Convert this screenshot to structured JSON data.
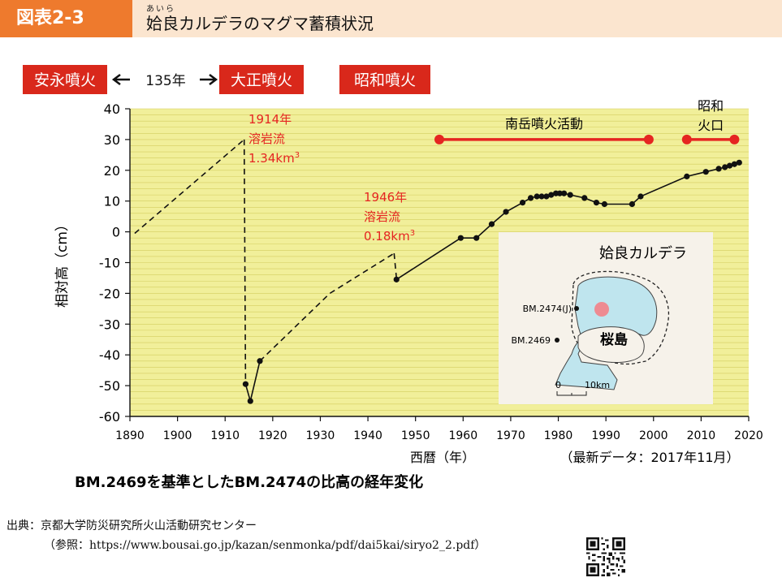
{
  "header": {
    "figure_number": "図表2-3",
    "title_ruby": "あいら",
    "title": "姶良カルデラのマグマ蓄積状況"
  },
  "eruptions": {
    "anei": "安永噴火",
    "interval": "135年",
    "taisho": "大正噴火",
    "showa": "昭和噴火"
  },
  "colors": {
    "accent": "#ee7a2d",
    "header_bg": "#fbe5cf",
    "plot_bg": "#f1ef9a",
    "event_red": "#e52521",
    "box_red": "#d9281b"
  },
  "chart_data": {
    "type": "line",
    "xlabel": "西暦（年）",
    "ylabel": "相対高（cm）",
    "xlim": [
      1890,
      2020
    ],
    "ylim": [
      -60,
      40
    ],
    "x_ticks": [
      1890,
      1900,
      1910,
      1920,
      1930,
      1940,
      1950,
      1960,
      1970,
      1980,
      1990,
      2000,
      2010,
      2020
    ],
    "y_ticks": [
      40,
      30,
      20,
      10,
      0,
      -10,
      -20,
      -30,
      -40,
      -50,
      -60
    ],
    "grid": "horizontal",
    "footnote": "（最新データ：2017年11月）",
    "caption": "BM.2469を基準としたBM.2474の比高の経年変化",
    "series": [
      {
        "style": "dashed",
        "points": [
          [
            1891,
            -0.5
          ],
          [
            1914,
            30
          ]
        ]
      },
      {
        "style": "dashed",
        "points": [
          [
            1914,
            30
          ],
          [
            1914.3,
            -49.5
          ]
        ]
      },
      {
        "style": "solid_markers",
        "points": [
          [
            1914.3,
            -49.5
          ],
          [
            1915.3,
            -55
          ],
          [
            1917.3,
            -42
          ]
        ]
      },
      {
        "style": "dashed",
        "points": [
          [
            1917.3,
            -42
          ],
          [
            1932,
            -20
          ],
          [
            1945.5,
            -7
          ]
        ]
      },
      {
        "style": "dashed",
        "points": [
          [
            1945.5,
            -7
          ],
          [
            1946,
            -15
          ]
        ]
      },
      {
        "style": "solid_markers",
        "points": [
          [
            1946,
            -15.5
          ],
          [
            1959.5,
            -2
          ],
          [
            1962.8,
            -2
          ],
          [
            1966,
            2.5
          ],
          [
            1969,
            6.5
          ],
          [
            1972.5,
            9.5
          ],
          [
            1974.2,
            11
          ],
          [
            1975.5,
            11.5
          ],
          [
            1976.5,
            11.5
          ],
          [
            1977.5,
            11.5
          ],
          [
            1978.5,
            12
          ],
          [
            1979.5,
            12.5
          ],
          [
            1980.3,
            12.5
          ],
          [
            1981.2,
            12.5
          ],
          [
            1982.5,
            12
          ],
          [
            1985.5,
            11
          ],
          [
            1988,
            9.5
          ],
          [
            1989.7,
            9
          ],
          [
            1995.5,
            9
          ],
          [
            1997.3,
            11.5
          ],
          [
            2007,
            18
          ],
          [
            2011,
            19.5
          ],
          [
            2013.7,
            20.5
          ],
          [
            2015,
            21
          ],
          [
            2016,
            21.5
          ],
          [
            2017,
            22
          ],
          [
            2018,
            22.5
          ]
        ]
      }
    ],
    "annotations": [
      {
        "lines": [
          "1914年",
          "溶岩流",
          "1.34km3"
        ]
      },
      {
        "lines": [
          "1946年",
          "溶岩流",
          "0.18km3"
        ]
      }
    ],
    "activity_periods": [
      {
        "label": "南岳噴火活動",
        "start": 1955,
        "end": 1999
      },
      {
        "label_lines": [
          "昭和",
          "火口"
        ],
        "start": 2007,
        "end": 2017
      }
    ]
  },
  "inset_map": {
    "title": "姶良カルデラ",
    "island": "桜島",
    "bm_j": "BM.2474(J)",
    "bm_2469": "BM.2469",
    "scale_0": "0",
    "scale_10": "10km"
  },
  "source": {
    "line1": "出典：京都大学防災研究所火山活動研究センター",
    "line2": "（参照：https://www.bousai.go.jp/kazan/senmonka/pdf/dai5kai/siryo2_2.pdf）"
  }
}
